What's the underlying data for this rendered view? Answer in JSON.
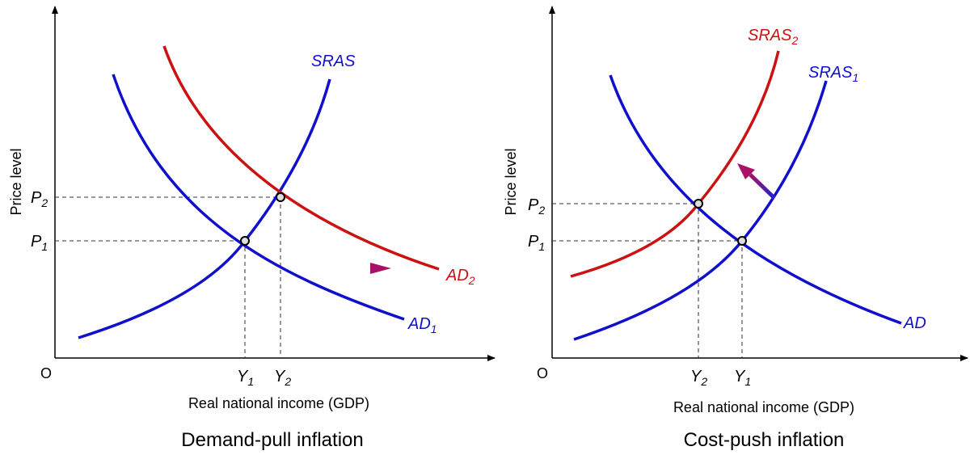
{
  "panels": [
    {
      "title": "Demand-pull inflation",
      "x_axis_label": "Real national income (GDP)",
      "y_axis_label": "Price level",
      "origin": "O",
      "curves": [
        {
          "base": "SRAS"
        },
        {
          "base": "AD",
          "sub": "1"
        },
        {
          "base": "AD",
          "sub": "2"
        }
      ],
      "y_labels": [
        {
          "base": "P",
          "sub": "1"
        },
        {
          "base": "P",
          "sub": "2"
        }
      ],
      "x_labels": [
        {
          "base": "Y",
          "sub": "1"
        },
        {
          "base": "Y",
          "sub": "2"
        }
      ]
    },
    {
      "title": "Cost-push inflation",
      "x_axis_label": "Real national income (GDP)",
      "y_axis_label": "Price level",
      "origin": "O",
      "curves": [
        {
          "base": "SRAS",
          "sub": "2"
        },
        {
          "base": "SRAS",
          "sub": "1"
        },
        {
          "base": "AD"
        }
      ],
      "y_labels": [
        {
          "base": "P",
          "sub": "2"
        },
        {
          "base": "P",
          "sub": "1"
        }
      ],
      "x_labels": [
        {
          "base": "Y",
          "sub": "2"
        },
        {
          "base": "Y",
          "sub": "1"
        }
      ]
    }
  ]
}
